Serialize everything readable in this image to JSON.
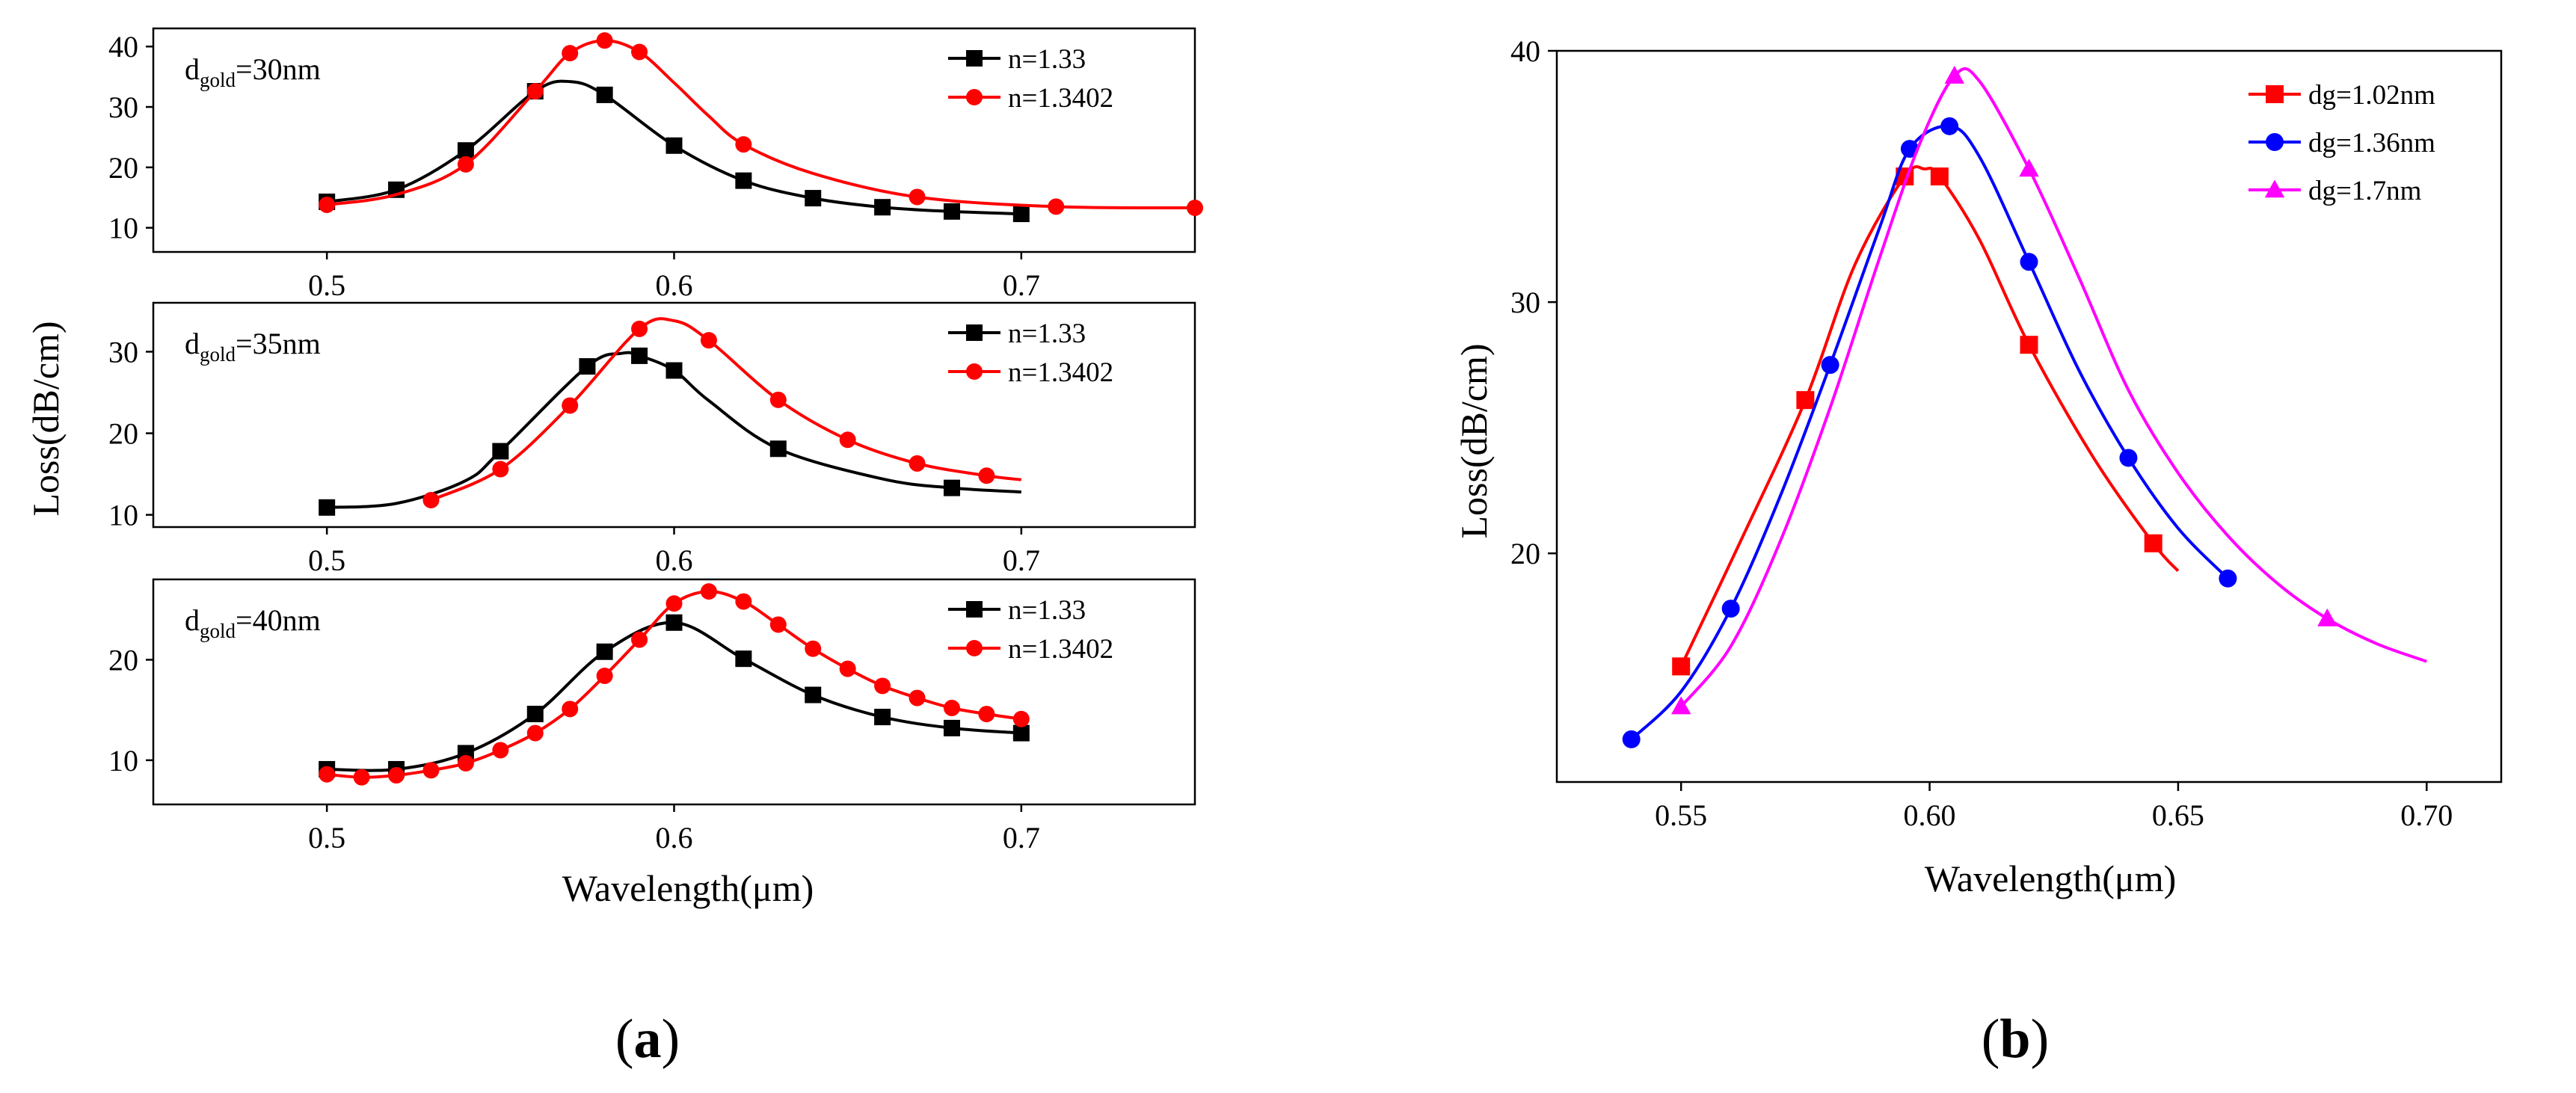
{
  "figure": {
    "panel_a_label": {
      "open": "(",
      "letter": "a",
      "close": ")"
    },
    "panel_b_label": {
      "open": "(",
      "letter": "b",
      "close": ")"
    }
  },
  "chart_data": [
    {
      "id": "a1",
      "type": "line",
      "xlabel": "",
      "ylabel": "",
      "xlim": [
        0.45,
        0.75
      ],
      "ylim": [
        6,
        43
      ],
      "xticks": [
        0.5,
        0.6,
        0.7
      ],
      "xtick_labels": [
        "0.5",
        "0.6",
        "0.7"
      ],
      "yticks": [
        10,
        20,
        30,
        40
      ],
      "ytick_labels": [
        "10",
        "20",
        "30",
        "40"
      ],
      "annotation": {
        "main": "d",
        "sub": "gold",
        "rest": "=30nm"
      },
      "legend": "top-right",
      "series": [
        {
          "name": "n=1.33",
          "color": "#000000",
          "marker": "square",
          "x": [
            0.5,
            0.52,
            0.54,
            0.56,
            0.58,
            0.6,
            0.62,
            0.64,
            0.66,
            0.68,
            0.7
          ],
          "y": [
            14.3,
            16.3,
            22.8,
            32.6,
            32.0,
            23.6,
            17.8,
            14.9,
            13.4,
            12.7,
            12.3
          ],
          "curve": [
            [
              0.5,
              14.3
            ],
            [
              0.52,
              16.3
            ],
            [
              0.54,
              22.8
            ],
            [
              0.56,
              32.6
            ],
            [
              0.57,
              34.2
            ],
            [
              0.58,
              32.0
            ],
            [
              0.6,
              23.6
            ],
            [
              0.62,
              17.8
            ],
            [
              0.64,
              14.9
            ],
            [
              0.66,
              13.4
            ],
            [
              0.68,
              12.7
            ],
            [
              0.7,
              12.3
            ]
          ]
        },
        {
          "name": "n=1.3402",
          "color": "#ff0000",
          "marker": "circle",
          "x": [
            0.5,
            0.54,
            0.56,
            0.57,
            0.58,
            0.59,
            0.62,
            0.67,
            0.71,
            0.75
          ],
          "y": [
            13.8,
            20.5,
            32.6,
            38.9,
            41.0,
            39.1,
            23.8,
            15.1,
            13.5,
            13.3
          ],
          "curve": [
            [
              0.5,
              13.8
            ],
            [
              0.52,
              15.5
            ],
            [
              0.54,
              20.5
            ],
            [
              0.56,
              32.6
            ],
            [
              0.57,
              38.9
            ],
            [
              0.58,
              41.0
            ],
            [
              0.59,
              39.1
            ],
            [
              0.6,
              34.0
            ],
            [
              0.61,
              28.5
            ],
            [
              0.62,
              23.8
            ],
            [
              0.64,
              19.0
            ],
            [
              0.67,
              15.1
            ],
            [
              0.71,
              13.5
            ],
            [
              0.75,
              13.3
            ]
          ]
        }
      ]
    },
    {
      "id": "a2",
      "type": "line",
      "xlabel": "",
      "ylabel": "",
      "xlim": [
        0.45,
        0.75
      ],
      "ylim": [
        8.5,
        36
      ],
      "xticks": [
        0.5,
        0.6,
        0.7
      ],
      "xtick_labels": [
        "0.5",
        "0.6",
        "0.7"
      ],
      "yticks": [
        10,
        20,
        30
      ],
      "ytick_labels": [
        "10",
        "20",
        "30"
      ],
      "annotation": {
        "main": "d",
        "sub": "gold",
        "rest": "=35nm"
      },
      "legend": "top-right",
      "series": [
        {
          "name": "n=1.33",
          "color": "#000000",
          "marker": "square",
          "x": [
            0.5,
            0.55,
            0.575,
            0.59,
            0.6,
            0.63,
            0.68
          ],
          "y": [
            10.9,
            17.8,
            28.2,
            29.5,
            27.7,
            18.1,
            13.3
          ],
          "curve": [
            [
              0.5,
              10.9
            ],
            [
              0.52,
              11.4
            ],
            [
              0.54,
              14.2
            ],
            [
              0.55,
              17.8
            ],
            [
              0.575,
              28.2
            ],
            [
              0.585,
              29.8
            ],
            [
              0.59,
              29.5
            ],
            [
              0.6,
              27.7
            ],
            [
              0.61,
              24.0
            ],
            [
              0.63,
              18.1
            ],
            [
              0.66,
              14.4
            ],
            [
              0.68,
              13.3
            ],
            [
              0.7,
              12.8
            ]
          ]
        },
        {
          "name": "n=1.3402",
          "color": "#ff0000",
          "marker": "circle",
          "x": [
            0.53,
            0.55,
            0.57,
            0.59,
            0.61,
            0.63,
            0.65,
            0.67,
            0.69
          ],
          "y": [
            11.8,
            15.6,
            23.4,
            32.8,
            31.4,
            24.1,
            19.2,
            16.3,
            14.8
          ],
          "curve": [
            [
              0.53,
              11.8
            ],
            [
              0.55,
              15.6
            ],
            [
              0.57,
              23.4
            ],
            [
              0.59,
              32.8
            ],
            [
              0.6,
              33.8
            ],
            [
              0.61,
              31.4
            ],
            [
              0.63,
              24.1
            ],
            [
              0.65,
              19.2
            ],
            [
              0.67,
              16.3
            ],
            [
              0.69,
              14.8
            ],
            [
              0.7,
              14.3
            ]
          ]
        }
      ]
    },
    {
      "id": "a3",
      "type": "line",
      "xlabel": "Wavelength(μm)",
      "ylabel": "",
      "xlim": [
        0.45,
        0.75
      ],
      "ylim": [
        5.6,
        28
      ],
      "xticks": [
        0.5,
        0.6,
        0.7
      ],
      "xtick_labels": [
        "0.5",
        "0.6",
        "0.7"
      ],
      "yticks": [
        10,
        20
      ],
      "ytick_labels": [
        "10",
        "20"
      ],
      "annotation": {
        "main": "d",
        "sub": "gold",
        "rest": "=40nm"
      },
      "legend": "top-right",
      "series": [
        {
          "name": "n=1.33",
          "color": "#000000",
          "marker": "square",
          "x": [
            0.5,
            0.52,
            0.54,
            0.56,
            0.58,
            0.6,
            0.62,
            0.64,
            0.66,
            0.68,
            0.7
          ],
          "y": [
            9.1,
            9.1,
            10.7,
            14.6,
            20.8,
            23.7,
            20.1,
            16.5,
            14.3,
            13.2,
            12.7
          ],
          "curve": [
            [
              0.5,
              9.1
            ],
            [
              0.52,
              9.1
            ],
            [
              0.54,
              10.7
            ],
            [
              0.56,
              14.6
            ],
            [
              0.58,
              20.8
            ],
            [
              0.6,
              23.7
            ],
            [
              0.62,
              20.1
            ],
            [
              0.64,
              16.5
            ],
            [
              0.66,
              14.3
            ],
            [
              0.68,
              13.2
            ],
            [
              0.7,
              12.7
            ]
          ]
        },
        {
          "name": "n=1.3402",
          "color": "#ff0000",
          "marker": "circle",
          "x": [
            0.5,
            0.51,
            0.52,
            0.53,
            0.54,
            0.55,
            0.56,
            0.57,
            0.58,
            0.59,
            0.6,
            0.61,
            0.62,
            0.63,
            0.64,
            0.65,
            0.66,
            0.67,
            0.68,
            0.69,
            0.7
          ],
          "y": [
            8.6,
            8.3,
            8.5,
            9.0,
            9.7,
            11.0,
            12.7,
            15.1,
            18.4,
            22.0,
            25.6,
            26.8,
            25.8,
            23.5,
            21.1,
            19.1,
            17.4,
            16.2,
            15.2,
            14.6,
            14.1
          ],
          "curve": [
            [
              0.5,
              8.6
            ],
            [
              0.51,
              8.3
            ],
            [
              0.52,
              8.5
            ],
            [
              0.53,
              9.0
            ],
            [
              0.54,
              9.7
            ],
            [
              0.55,
              11.0
            ],
            [
              0.56,
              12.7
            ],
            [
              0.57,
              15.1
            ],
            [
              0.58,
              18.4
            ],
            [
              0.59,
              22.0
            ],
            [
              0.6,
              25.6
            ],
            [
              0.61,
              26.8
            ],
            [
              0.62,
              25.8
            ],
            [
              0.63,
              23.5
            ],
            [
              0.64,
              21.1
            ],
            [
              0.65,
              19.1
            ],
            [
              0.66,
              17.4
            ],
            [
              0.67,
              16.2
            ],
            [
              0.68,
              15.2
            ],
            [
              0.69,
              14.6
            ],
            [
              0.7,
              14.1
            ]
          ]
        }
      ]
    },
    {
      "id": "a_shared",
      "type": "line",
      "ylabel": "Loss(dB/cm)"
    },
    {
      "id": "b",
      "type": "line",
      "xlabel": "Wavelength(μm)",
      "ylabel": "Loss(dB/cm)",
      "xlim": [
        0.525,
        0.715
      ],
      "ylim": [
        10.9,
        40
      ],
      "xticks": [
        0.55,
        0.6,
        0.65,
        0.7
      ],
      "xtick_labels": [
        "0.55",
        "0.60",
        "0.65",
        "0.70"
      ],
      "yticks": [
        20,
        30,
        40
      ],
      "ytick_labels": [
        "20",
        "30",
        "40"
      ],
      "legend": "top-right",
      "series": [
        {
          "name": "dg=1.02nm",
          "color": "#ff0000",
          "marker": "square",
          "x": [
            0.55,
            0.575,
            0.595,
            0.602,
            0.62,
            0.645
          ],
          "y": [
            15.5,
            26.1,
            35.0,
            35.0,
            28.3,
            20.4
          ],
          "curve": [
            [
              0.55,
              15.5
            ],
            [
              0.562,
              20.5
            ],
            [
              0.575,
              26.1
            ],
            [
              0.585,
              31.5
            ],
            [
              0.595,
              35.0
            ],
            [
              0.599,
              35.3
            ],
            [
              0.602,
              35.0
            ],
            [
              0.61,
              32.5
            ],
            [
              0.62,
              28.3
            ],
            [
              0.633,
              23.8
            ],
            [
              0.645,
              20.4
            ],
            [
              0.65,
              19.3
            ]
          ]
        },
        {
          "name": "dg=1.36nm",
          "color": "#0000ff",
          "marker": "circle",
          "x": [
            0.54,
            0.56,
            0.58,
            0.596,
            0.604,
            0.62,
            0.64,
            0.66
          ],
          "y": [
            12.6,
            17.8,
            27.5,
            36.1,
            37.0,
            31.6,
            23.8,
            19.0
          ],
          "curve": [
            [
              0.54,
              12.6
            ],
            [
              0.55,
              14.5
            ],
            [
              0.56,
              17.8
            ],
            [
              0.57,
              22.3
            ],
            [
              0.58,
              27.5
            ],
            [
              0.59,
              33.0
            ],
            [
              0.596,
              36.1
            ],
            [
              0.604,
              37.0
            ],
            [
              0.61,
              35.8
            ],
            [
              0.62,
              31.6
            ],
            [
              0.63,
              27.3
            ],
            [
              0.64,
              23.8
            ],
            [
              0.65,
              21.0
            ],
            [
              0.66,
              19.0
            ]
          ]
        },
        {
          "name": "dg=1.7nm",
          "color": "#ff00ff",
          "marker": "triangle",
          "x": [
            0.55,
            0.605,
            0.62,
            0.68
          ],
          "y": [
            13.9,
            39.0,
            35.3,
            17.4
          ],
          "curve": [
            [
              0.55,
              13.9
            ],
            [
              0.56,
              16.3
            ],
            [
              0.57,
              20.5
            ],
            [
              0.58,
              25.8
            ],
            [
              0.59,
              31.8
            ],
            [
              0.598,
              36.3
            ],
            [
              0.605,
              39.0
            ],
            [
              0.61,
              38.8
            ],
            [
              0.62,
              35.3
            ],
            [
              0.63,
              31.0
            ],
            [
              0.64,
              26.5
            ],
            [
              0.65,
              23.2
            ],
            [
              0.66,
              20.7
            ],
            [
              0.67,
              18.8
            ],
            [
              0.68,
              17.4
            ],
            [
              0.69,
              16.4
            ],
            [
              0.7,
              15.7
            ]
          ]
        }
      ]
    }
  ]
}
